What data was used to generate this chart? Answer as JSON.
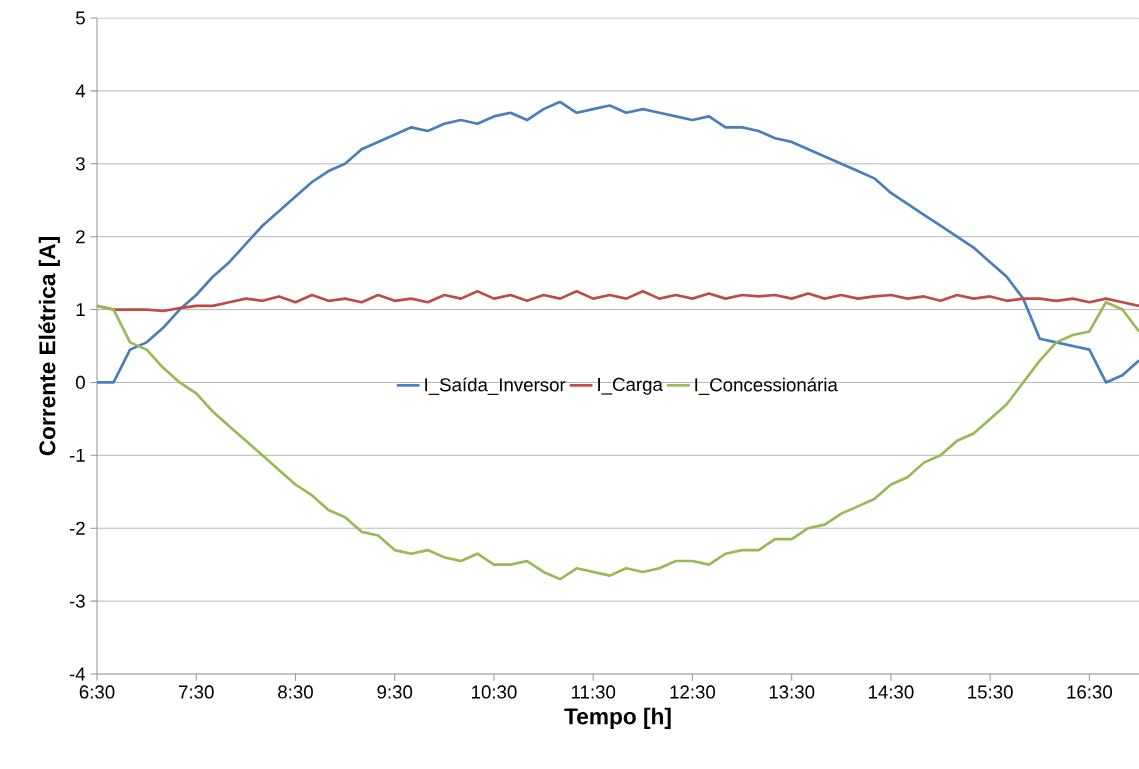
{
  "chart_data": {
    "type": "line",
    "xlabel": "Tempo [h]",
    "ylabel": "Corrente Elétrica [A]",
    "x": [
      6.5,
      6.667,
      6.833,
      7,
      7.167,
      7.333,
      7.5,
      7.667,
      7.833,
      8,
      8.167,
      8.333,
      8.5,
      8.667,
      8.833,
      9,
      9.167,
      9.333,
      9.5,
      9.667,
      9.833,
      10,
      10.167,
      10.333,
      10.5,
      10.667,
      10.833,
      11,
      11.167,
      11.333,
      11.5,
      11.667,
      11.833,
      12,
      12.167,
      12.333,
      12.5,
      12.667,
      12.833,
      13,
      13.167,
      13.333,
      13.5,
      13.667,
      13.833,
      14,
      14.167,
      14.333,
      14.5,
      14.667,
      14.833,
      15,
      15.167,
      15.333,
      15.5,
      15.667,
      15.833,
      16,
      16.167,
      16.333,
      16.5,
      16.667,
      16.833,
      17
    ],
    "series": [
      {
        "name": "I_Saída_Inversor",
        "color": "#4a7ebb",
        "values": [
          0,
          0,
          0.45,
          0.55,
          0.75,
          1.0,
          1.2,
          1.45,
          1.65,
          1.9,
          2.15,
          2.35,
          2.55,
          2.75,
          2.9,
          3.0,
          3.2,
          3.3,
          3.4,
          3.5,
          3.45,
          3.55,
          3.6,
          3.55,
          3.65,
          3.7,
          3.6,
          3.75,
          3.85,
          3.7,
          3.75,
          3.8,
          3.7,
          3.75,
          3.7,
          3.65,
          3.6,
          3.65,
          3.5,
          3.5,
          3.45,
          3.35,
          3.3,
          3.2,
          3.1,
          3.0,
          2.9,
          2.8,
          2.6,
          2.45,
          2.3,
          2.15,
          2.0,
          1.85,
          1.65,
          1.45,
          1.15,
          0.6,
          0.55,
          0.5,
          0.45,
          0,
          0.1,
          0.3
        ]
      },
      {
        "name": "I_Carga",
        "color": "#be4b48",
        "values": [
          1.05,
          1.0,
          1.0,
          1.0,
          0.98,
          1.02,
          1.05,
          1.05,
          1.1,
          1.15,
          1.12,
          1.18,
          1.1,
          1.2,
          1.12,
          1.15,
          1.1,
          1.2,
          1.12,
          1.15,
          1.1,
          1.2,
          1.15,
          1.25,
          1.15,
          1.2,
          1.12,
          1.2,
          1.15,
          1.25,
          1.15,
          1.2,
          1.15,
          1.25,
          1.15,
          1.2,
          1.15,
          1.22,
          1.15,
          1.2,
          1.18,
          1.2,
          1.15,
          1.22,
          1.15,
          1.2,
          1.15,
          1.18,
          1.2,
          1.15,
          1.18,
          1.12,
          1.2,
          1.15,
          1.18,
          1.12,
          1.15,
          1.15,
          1.12,
          1.15,
          1.1,
          1.15,
          1.1,
          1.05
        ]
      },
      {
        "name": "I_Concessionária",
        "color": "#98b954",
        "values": [
          1.05,
          1.0,
          0.55,
          0.45,
          0.2,
          0.0,
          -0.15,
          -0.4,
          -0.6,
          -0.8,
          -1.0,
          -1.2,
          -1.4,
          -1.55,
          -1.75,
          -1.85,
          -2.05,
          -2.1,
          -2.3,
          -2.35,
          -2.3,
          -2.4,
          -2.45,
          -2.35,
          -2.5,
          -2.5,
          -2.45,
          -2.6,
          -2.7,
          -2.55,
          -2.6,
          -2.65,
          -2.55,
          -2.6,
          -2.55,
          -2.45,
          -2.45,
          -2.5,
          -2.35,
          -2.3,
          -2.3,
          -2.15,
          -2.15,
          -2.0,
          -1.95,
          -1.8,
          -1.7,
          -1.6,
          -1.4,
          -1.3,
          -1.1,
          -1.0,
          -0.8,
          -0.7,
          -0.5,
          -0.3,
          0.0,
          0.3,
          0.55,
          0.65,
          0.7,
          1.1,
          1.0,
          0.7
        ]
      }
    ],
    "xlim": [
      6.5,
      17.0
    ],
    "xticks": [
      {
        "value": 6.5,
        "label": "6:30"
      },
      {
        "value": 7.5,
        "label": "7:30"
      },
      {
        "value": 8.5,
        "label": "8:30"
      },
      {
        "value": 9.5,
        "label": "9:30"
      },
      {
        "value": 10.5,
        "label": "10:30"
      },
      {
        "value": 11.5,
        "label": "11:30"
      },
      {
        "value": 12.5,
        "label": "12:30"
      },
      {
        "value": 13.5,
        "label": "13:30"
      },
      {
        "value": 14.5,
        "label": "14:30"
      },
      {
        "value": 15.5,
        "label": "15:30"
      },
      {
        "value": 16.5,
        "label": "16:30"
      }
    ],
    "ylim": [
      -4,
      5
    ],
    "yticks": [
      -4,
      -3,
      -2,
      -1,
      0,
      1,
      2,
      3,
      4,
      5
    ],
    "grid": "y",
    "legend": "center",
    "marker": "none",
    "line_style": "solid"
  }
}
